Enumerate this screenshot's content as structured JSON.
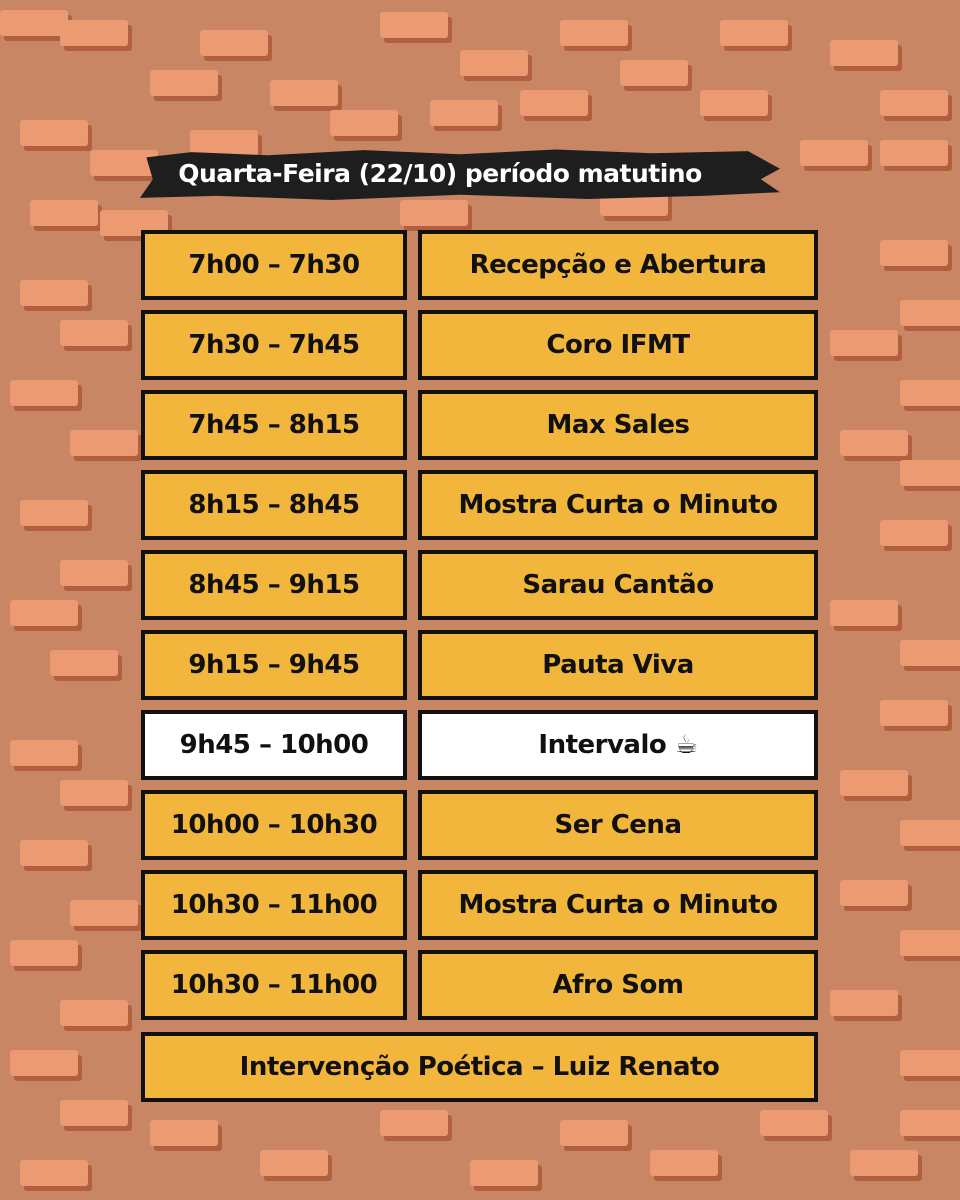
{
  "title": "Quarta-Feira (22/10) período matutino",
  "colors": {
    "background": "#c98664",
    "brick": "#eb9a72",
    "box": "#f2b63c",
    "break_box": "#ffffff",
    "border": "#111111"
  },
  "schedule": [
    {
      "time": "7h00 – 7h30",
      "activity": "Recepção e Abertura"
    },
    {
      "time": "7h30 – 7h45",
      "activity": "Coro IFMT"
    },
    {
      "time": "7h45 – 8h15",
      "activity": "Max Sales"
    },
    {
      "time": "8h15 – 8h45",
      "activity": "Mostra Curta o Minuto"
    },
    {
      "time": "8h45 – 9h15",
      "activity": "Sarau Cantão"
    },
    {
      "time": "9h15 – 9h45",
      "activity": "Pauta Viva"
    },
    {
      "time": "9h45 – 10h00",
      "activity": "Intervalo ☕",
      "highlight": "white",
      "icon": "coffee-cup-icon"
    },
    {
      "time": "10h00 – 10h30",
      "activity": "Ser Cena"
    },
    {
      "time": "10h30 – 11h00",
      "activity": "Mostra Curta o Minuto"
    },
    {
      "time": "10h30 – 11h00",
      "activity": "Afro Som"
    }
  ],
  "footer": "Intervenção Poética – Luiz Renato"
}
